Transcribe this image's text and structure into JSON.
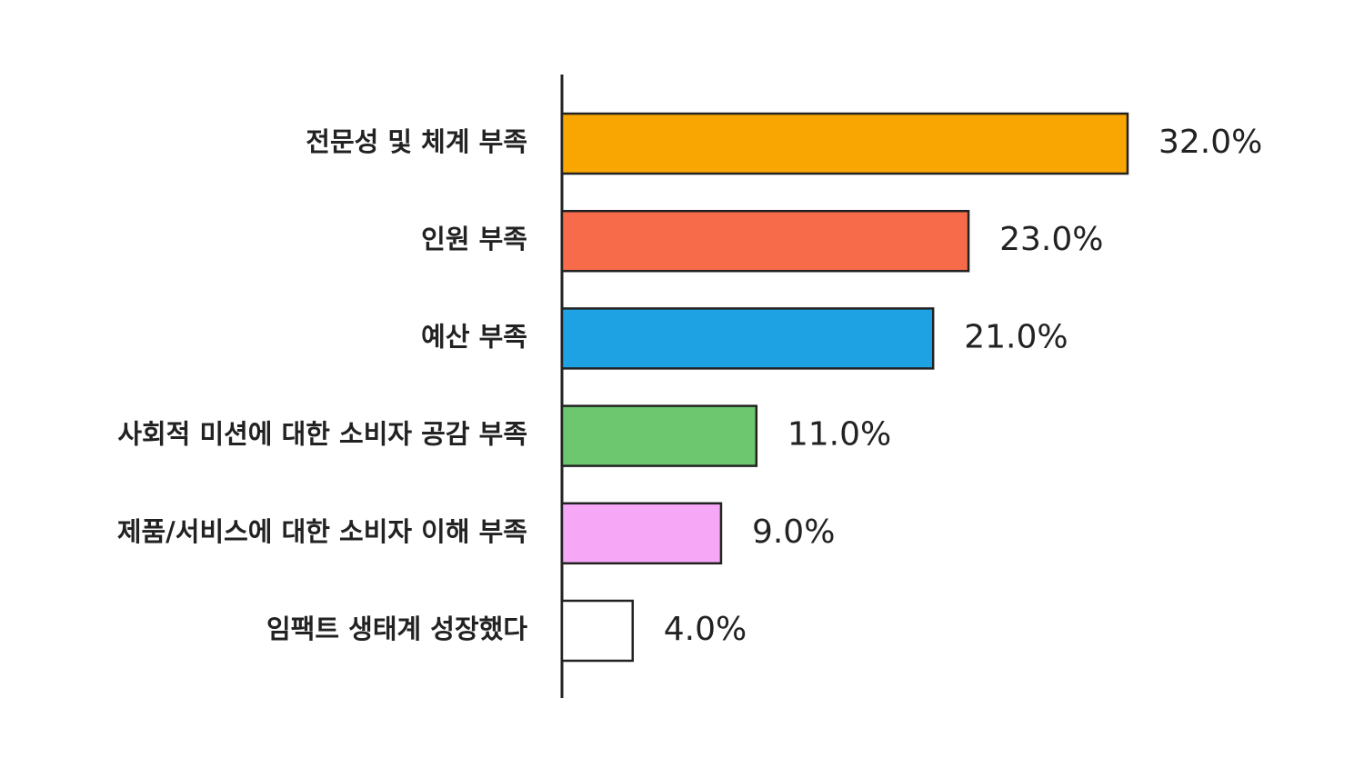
{
  "chart_data": {
    "type": "hbar",
    "categories": [
      "전문성 및 체계 부족",
      "인원 부족",
      "예산 부족",
      "사회적 미션에 대한 소비자 공감 부족",
      "제품/서비스에 대한 소비자 이해 부족",
      "임팩트 생태계 성장했다"
    ],
    "values": [
      32.0,
      23.0,
      21.0,
      11.0,
      9.0,
      4.0
    ],
    "value_labels": [
      "32.0%",
      "23.0%",
      "21.0%",
      "11.0%",
      "9.0%",
      "4.0%"
    ],
    "colors": [
      "#f9a602",
      "#f76b4a",
      "#1ea2e4",
      "#6cc76f",
      "#f6a8f7",
      "#ffffff"
    ]
  }
}
